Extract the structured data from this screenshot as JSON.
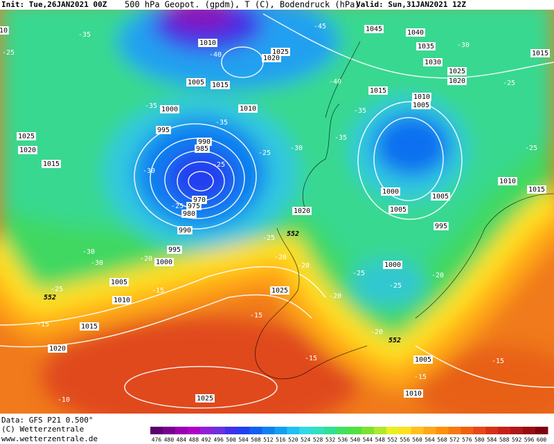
{
  "header": {
    "init": "Init: Tue,26JAN2021 00Z",
    "title": "500 hPa Geopot. (gpdm), T (C), Bodendruck (hPa)",
    "valid": "Valid: Sun,31JAN2021 12Z"
  },
  "footer": {
    "data": "Data: GFS P21 0.500°",
    "copyright": "(C) Wetterzentrale",
    "url": "www.wetterzentrale.de"
  },
  "map": {
    "isobars": [
      "10",
      "1045",
      "1040",
      "1035",
      "1030",
      "1025",
      "1020",
      "1015",
      "1010",
      "1025",
      "1020",
      "1005",
      "1015",
      "1000",
      "1010",
      "995",
      "990",
      "985",
      "970",
      "975",
      "980",
      "990",
      "995",
      "1000",
      "1005",
      "1010",
      "1015",
      "1020",
      "1025",
      "1025",
      "1020",
      "1015",
      "1010",
      "1005",
      "1000",
      "1005",
      "1005",
      "995",
      "1000",
      "1005",
      "1010",
      "1010",
      "1015",
      "1025",
      "1020",
      "1015"
    ],
    "temperatures": [
      "-35",
      "-25",
      "-45",
      "-40",
      "-30",
      "-25",
      "-35",
      "-35",
      "-40",
      "-35",
      "-35",
      "-30",
      "-25",
      "-30",
      "-25",
      "-25",
      "-25",
      "-30",
      "-30",
      "-20",
      "-25",
      "-20",
      "-20",
      "-25",
      "-25",
      "-20",
      "-25",
      "-15",
      "-20",
      "-15",
      "-15",
      "-20",
      "-15",
      "-15",
      "-15",
      "-10"
    ],
    "contour_552": [
      "552",
      "552",
      "552"
    ]
  },
  "legend": {
    "labels": [
      476,
      480,
      484,
      488,
      492,
      496,
      500,
      504,
      508,
      512,
      516,
      520,
      524,
      528,
      532,
      536,
      540,
      544,
      548,
      552,
      556,
      560,
      564,
      568,
      572,
      576,
      580,
      584,
      588,
      592,
      596,
      600
    ],
    "colors": [
      "#5a0070",
      "#7a0090",
      "#9a00b0",
      "#b000c8",
      "#9020d8",
      "#6a30e0",
      "#4030e8",
      "#2040f0",
      "#1060f0",
      "#1080f0",
      "#10a0f0",
      "#20c0f0",
      "#30d8e8",
      "#30e0c0",
      "#30e090",
      "#40e060",
      "#50e040",
      "#80e030",
      "#b0e830",
      "#e8f020",
      "#ffe020",
      "#ffc020",
      "#ffa818",
      "#ff9010",
      "#f87810",
      "#f06010",
      "#e84818",
      "#d83018",
      "#c82018",
      "#b01818",
      "#980c10",
      "#800010"
    ]
  }
}
